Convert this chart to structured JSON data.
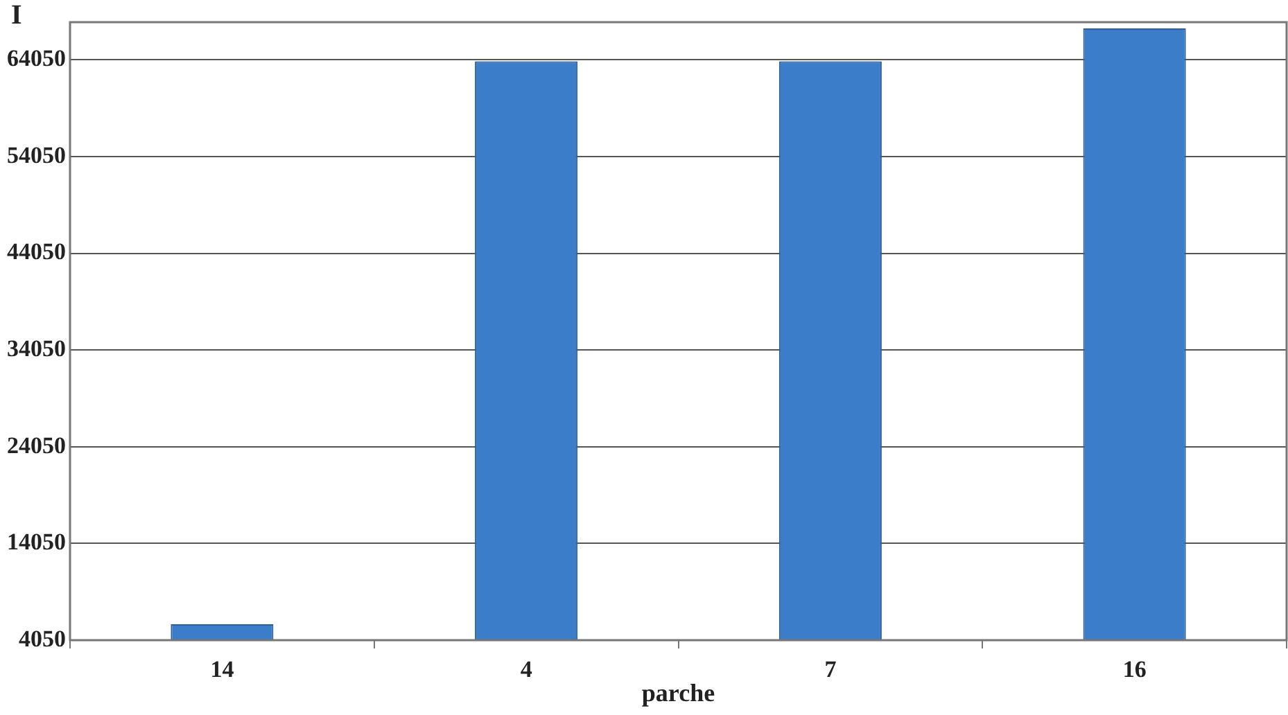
{
  "chart_data": {
    "type": "bar",
    "xlabel": "parche",
    "ylabel": "I",
    "categories": [
      "14",
      "4",
      "7",
      "16"
    ],
    "values": [
      5700,
      63900,
      63900,
      67300
    ],
    "color": "#3b7dc9",
    "ylim": [
      4050,
      67950
    ],
    "yticks": [
      4050,
      14050,
      24050,
      34050,
      44050,
      54050,
      64050
    ],
    "grid": "y"
  }
}
